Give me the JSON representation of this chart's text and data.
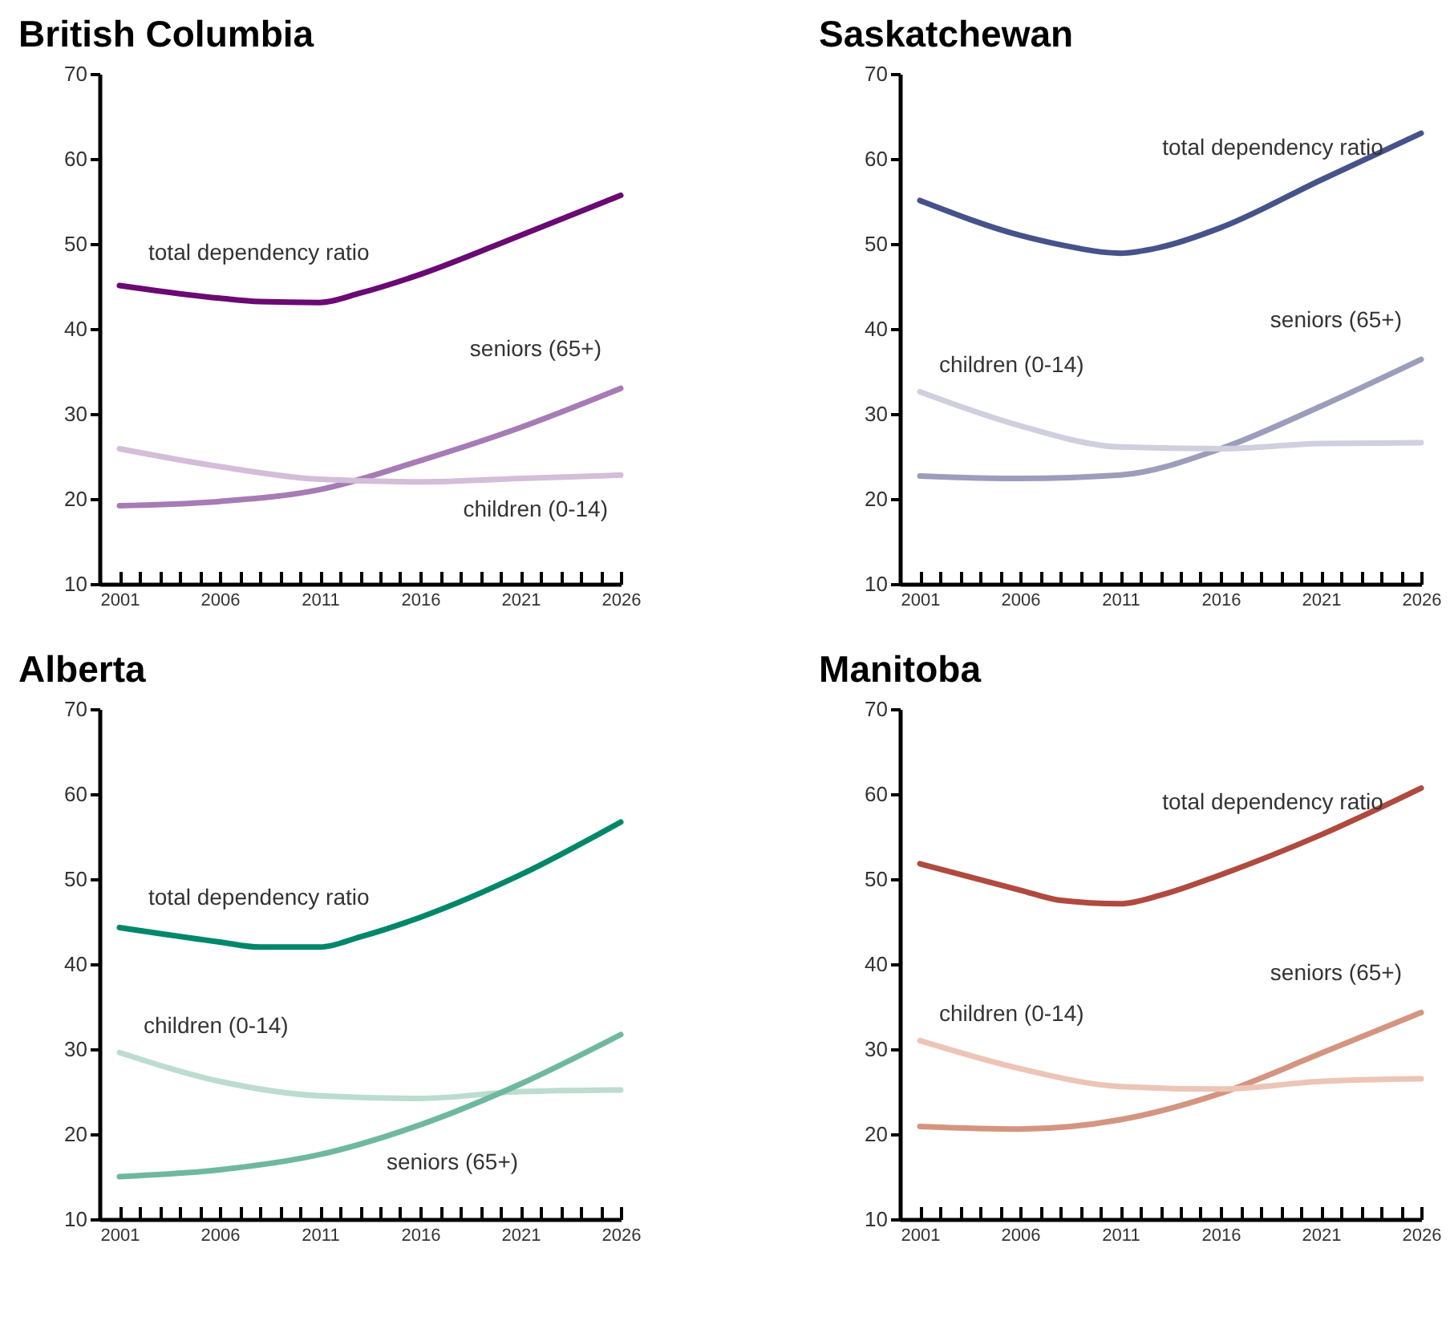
{
  "chart_data": [
    {
      "type": "line",
      "title": "British Columbia",
      "xlim": [
        2000,
        2026
      ],
      "ylim": [
        10,
        70
      ],
      "yticks": [
        10,
        20,
        30,
        40,
        50,
        60,
        70
      ],
      "legend": false,
      "xticks": [
        2001,
        {
          "value": 2002,
          "label": null
        },
        {
          "value": 2003,
          "label": null
        },
        {
          "value": 2004,
          "label": null
        },
        {
          "value": 2005,
          "label": null
        },
        2006,
        {
          "value": 2007,
          "label": null
        },
        {
          "value": 2008,
          "label": null
        },
        {
          "value": 2009,
          "label": null
        },
        {
          "value": 2010,
          "label": null
        },
        2011,
        {
          "value": 2012,
          "label": null
        },
        {
          "value": 2013,
          "label": null
        },
        {
          "value": 2014,
          "label": null
        },
        {
          "value": 2015,
          "label": null
        },
        2016,
        {
          "value": 2017,
          "label": null
        },
        {
          "value": 2018,
          "label": null
        },
        {
          "value": 2019,
          "label": null
        },
        {
          "value": 2020,
          "label": null
        },
        2021,
        {
          "value": 2022,
          "label": null
        },
        {
          "value": 2023,
          "label": null
        },
        {
          "value": 2024,
          "label": null
        },
        {
          "value": 2025,
          "label": null
        },
        2026
      ],
      "series": [
        {
          "name": "total dependency ratio",
          "color": "#6a0a73",
          "x": [
            2001,
            2006,
            2008,
            2011,
            2013,
            2016,
            2021,
            2026
          ],
          "values": [
            45.1,
            43.6,
            43.2,
            43.1,
            44.2,
            46.4,
            51.0,
            55.7
          ]
        },
        {
          "name": "seniors (65+)",
          "color": "#a77bb5",
          "x": [
            2001,
            2006,
            2011,
            2016,
            2021,
            2026
          ],
          "values": [
            19.2,
            19.7,
            21.1,
            24.5,
            28.4,
            33.0
          ]
        },
        {
          "name": "children (0-14)",
          "color": "#d4bdd9",
          "x": [
            2001,
            2006,
            2011,
            2016,
            2021,
            2026
          ],
          "values": [
            25.9,
            23.8,
            22.3,
            22.0,
            22.4,
            22.8
          ]
        }
      ]
    },
    {
      "type": "line",
      "title": "Saskatchewan",
      "xlim": [
        2000,
        2026
      ],
      "ylim": [
        10,
        70
      ],
      "yticks": [
        10,
        20,
        30,
        40,
        50,
        60,
        70
      ],
      "legend": false,
      "xticks": [
        2001,
        {
          "value": 2002,
          "label": null
        },
        {
          "value": 2003,
          "label": null
        },
        {
          "value": 2004,
          "label": null
        },
        {
          "value": 2005,
          "label": null
        },
        2006,
        {
          "value": 2007,
          "label": null
        },
        {
          "value": 2008,
          "label": null
        },
        {
          "value": 2009,
          "label": null
        },
        {
          "value": 2010,
          "label": null
        },
        2011,
        {
          "value": 2012,
          "label": null
        },
        {
          "value": 2013,
          "label": null
        },
        {
          "value": 2014,
          "label": null
        },
        {
          "value": 2015,
          "label": null
        },
        2016,
        {
          "value": 2017,
          "label": null
        },
        {
          "value": 2018,
          "label": null
        },
        {
          "value": 2019,
          "label": null
        },
        {
          "value": 2020,
          "label": null
        },
        2021,
        {
          "value": 2022,
          "label": null
        },
        {
          "value": 2023,
          "label": null
        },
        {
          "value": 2024,
          "label": null
        },
        {
          "value": 2025,
          "label": null
        },
        2026
      ],
      "series": [
        {
          "name": "total dependency ratio",
          "color": "#46538a",
          "x": [
            2001,
            2006,
            2008,
            2011,
            2013,
            2016,
            2021,
            2026
          ],
          "values": [
            55.1,
            51.0,
            49.9,
            48.9,
            49.6,
            51.9,
            57.5,
            63.0
          ]
        },
        {
          "name": "seniors (65+)",
          "color": "#9b9dbb",
          "x": [
            2001,
            2006,
            2011,
            2016,
            2021,
            2026
          ],
          "values": [
            22.7,
            22.4,
            22.8,
            25.9,
            30.9,
            36.4
          ]
        },
        {
          "name": "children (0-14)",
          "color": "#cfcfdf",
          "x": [
            2001,
            2006,
            2011,
            2016,
            2021,
            2026
          ],
          "values": [
            32.6,
            28.6,
            26.1,
            25.9,
            26.5,
            26.6
          ]
        }
      ]
    },
    {
      "type": "line",
      "title": "Alberta",
      "xlim": [
        2000,
        2026
      ],
      "ylim": [
        10,
        70
      ],
      "yticks": [
        10,
        20,
        30,
        40,
        50,
        60,
        70
      ],
      "legend": false,
      "xticks": [
        2001,
        {
          "value": 2002,
          "label": null
        },
        {
          "value": 2003,
          "label": null
        },
        {
          "value": 2004,
          "label": null
        },
        {
          "value": 2005,
          "label": null
        },
        2006,
        {
          "value": 2007,
          "label": null
        },
        {
          "value": 2008,
          "label": null
        },
        {
          "value": 2009,
          "label": null
        },
        {
          "value": 2010,
          "label": null
        },
        2011,
        {
          "value": 2012,
          "label": null
        },
        {
          "value": 2013,
          "label": null
        },
        {
          "value": 2014,
          "label": null
        },
        {
          "value": 2015,
          "label": null
        },
        2016,
        {
          "value": 2017,
          "label": null
        },
        {
          "value": 2018,
          "label": null
        },
        {
          "value": 2019,
          "label": null
        },
        {
          "value": 2020,
          "label": null
        },
        2021,
        {
          "value": 2022,
          "label": null
        },
        {
          "value": 2023,
          "label": null
        },
        {
          "value": 2024,
          "label": null
        },
        {
          "value": 2025,
          "label": null
        },
        2026
      ],
      "series": [
        {
          "name": "total dependency ratio",
          "color": "#00876a",
          "x": [
            2001,
            2006,
            2008,
            2011,
            2013,
            2016,
            2021,
            2026
          ],
          "values": [
            44.3,
            42.6,
            42.0,
            42.0,
            43.2,
            45.5,
            50.5,
            56.7
          ]
        },
        {
          "name": "children (0-14)",
          "color": "#bcdccf",
          "x": [
            2001,
            2006,
            2011,
            2016,
            2021,
            2026
          ],
          "values": [
            29.6,
            26.2,
            24.5,
            24.2,
            25.0,
            25.2
          ]
        },
        {
          "name": "seniors (65+)",
          "color": "#6fb89f",
          "x": [
            2001,
            2006,
            2011,
            2016,
            2021,
            2026
          ],
          "values": [
            15.0,
            15.8,
            17.6,
            21.1,
            25.9,
            31.7
          ]
        }
      ]
    },
    {
      "type": "line",
      "title": "Manitoba",
      "xlim": [
        2000,
        2026
      ],
      "ylim": [
        10,
        70
      ],
      "yticks": [
        10,
        20,
        30,
        40,
        50,
        60,
        70
      ],
      "legend": false,
      "xticks": [
        2001,
        {
          "value": 2002,
          "label": null
        },
        {
          "value": 2003,
          "label": null
        },
        {
          "value": 2004,
          "label": null
        },
        {
          "value": 2005,
          "label": null
        },
        2006,
        {
          "value": 2007,
          "label": null
        },
        {
          "value": 2008,
          "label": null
        },
        {
          "value": 2009,
          "label": null
        },
        {
          "value": 2010,
          "label": null
        },
        2011,
        {
          "value": 2012,
          "label": null
        },
        {
          "value": 2013,
          "label": null
        },
        {
          "value": 2014,
          "label": null
        },
        {
          "value": 2015,
          "label": null
        },
        2016,
        {
          "value": 2017,
          "label": null
        },
        {
          "value": 2018,
          "label": null
        },
        {
          "value": 2019,
          "label": null
        },
        {
          "value": 2020,
          "label": null
        },
        2021,
        {
          "value": 2022,
          "label": null
        },
        {
          "value": 2023,
          "label": null
        },
        {
          "value": 2024,
          "label": null
        },
        {
          "value": 2025,
          "label": null
        },
        2026
      ],
      "series": [
        {
          "name": "total dependency ratio",
          "color": "#b04a3f",
          "x": [
            2001,
            2006,
            2008,
            2011,
            2013,
            2016,
            2021,
            2026
          ],
          "values": [
            51.8,
            48.7,
            47.5,
            47.1,
            48.1,
            50.5,
            55.2,
            60.7
          ]
        },
        {
          "name": "seniors (65+)",
          "color": "#d49580",
          "x": [
            2001,
            2006,
            2011,
            2016,
            2021,
            2026
          ],
          "values": [
            20.9,
            20.6,
            21.7,
            24.8,
            29.5,
            34.3
          ]
        },
        {
          "name": "children (0-14)",
          "color": "#ecc5b7",
          "x": [
            2001,
            2006,
            2011,
            2016,
            2021,
            2026
          ],
          "values": [
            31.0,
            27.7,
            25.6,
            25.3,
            26.2,
            26.5
          ]
        }
      ]
    }
  ]
}
